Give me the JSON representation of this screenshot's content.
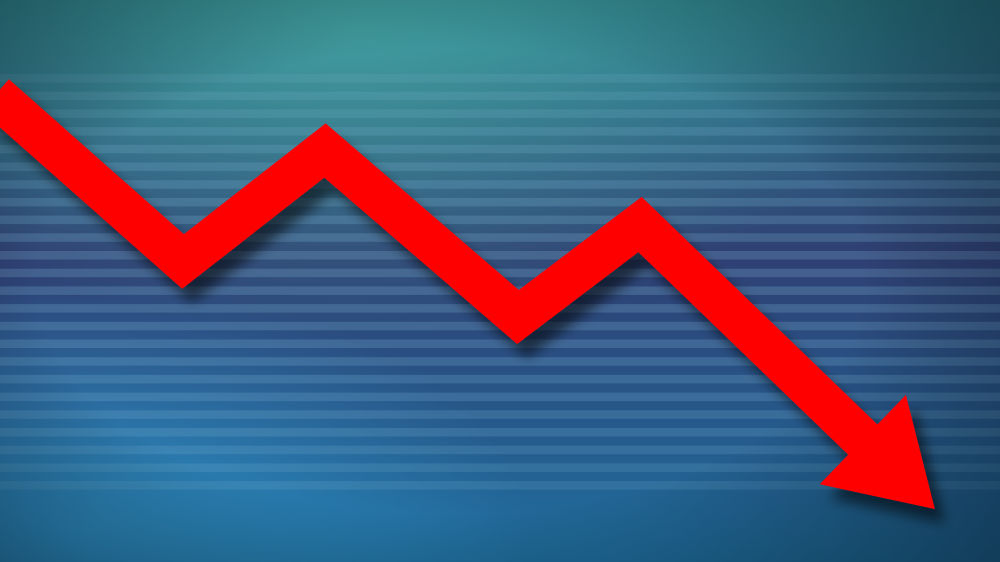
{
  "scene": {
    "subject": "downward-trend-arrow-illustration",
    "colors": {
      "arrow": "#ff0000",
      "stripe": "#7fb7d6",
      "background_top": "#2f8a96",
      "background_mid": "#2f3f73",
      "background_bottom": "#1f6f9f"
    },
    "trend": {
      "direction": "down",
      "points": [
        {
          "x": 0,
          "y": 100
        },
        {
          "x": 1,
          "y": 55
        },
        {
          "x": 2,
          "y": 85
        },
        {
          "x": 3,
          "y": 40
        },
        {
          "x": 4,
          "y": 65
        },
        {
          "x": 5,
          "y": 5
        }
      ]
    }
  }
}
